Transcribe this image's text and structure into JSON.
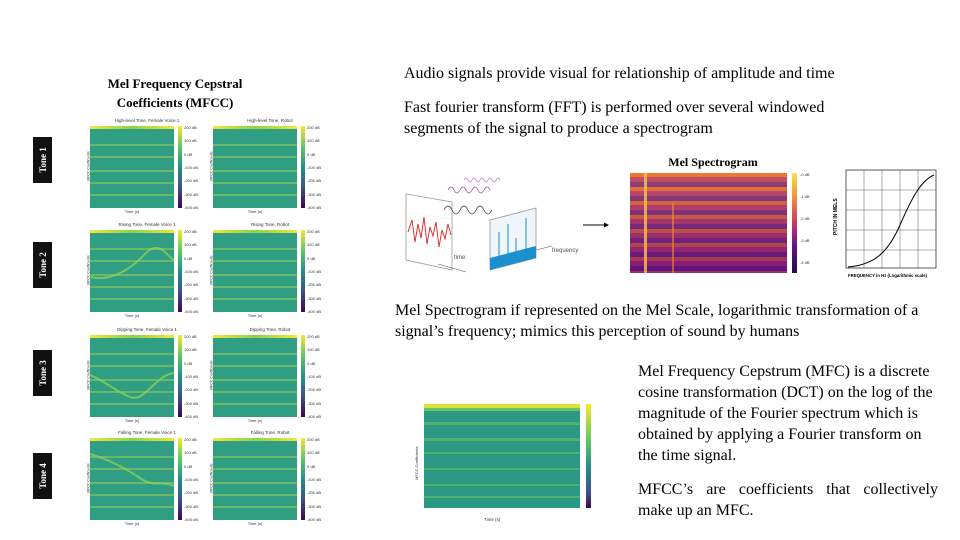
{
  "left": {
    "title_line1": "Mel Frequency Cepstral",
    "title_line2": "Coefficients (MFCC)",
    "tones": [
      "Tone 1",
      "Tone 2",
      "Tone 3",
      "Tone 4"
    ],
    "panels": [
      {
        "title": "High-level Tone, Female Voice 1",
        "xlabel": "Time (s)",
        "ylabel": "MFCC Coefficients"
      },
      {
        "title": "High-level Tone, Robot",
        "xlabel": "Time (s)",
        "ylabel": "MFCC Coefficients"
      },
      {
        "title": "Rising Tone, Female Voice 1",
        "xlabel": "Time (s)",
        "ylabel": "MFCC Coefficients"
      },
      {
        "title": "Rising Tone, Robot",
        "xlabel": "Time (s)",
        "ylabel": "MFCC Coefficients"
      },
      {
        "title": "Dipping Tone, Female Voice 1",
        "xlabel": "Time (s)",
        "ylabel": "MFCC Coefficients"
      },
      {
        "title": "Dipping Tone, Robot",
        "xlabel": "Time (s)",
        "ylabel": "MFCC Coefficients"
      },
      {
        "title": "Falling Tone, Female Voice 1",
        "xlabel": "Time (s)",
        "ylabel": "MFCC Coefficients"
      },
      {
        "title": "Falling Tone, Robot",
        "xlabel": "Time (s)",
        "ylabel": "MFCC Coefficients"
      }
    ],
    "colorbar_ticks": [
      "200 dB",
      "100 dB",
      "0 dB",
      "-100 dB",
      "-200 dB",
      "-300 dB",
      "-400 dB"
    ]
  },
  "right": {
    "text1": "Audio signals provide visual for relationship of amplitude and time",
    "text2": "Fast fourier transform (FFT) is performed over several windowed segments of the signal to produce a spectrogram",
    "mel_title": "Mel Spectrogram",
    "fft_time_label": "time",
    "fft_freq_label": "frequency",
    "mel_cbar_ticks": [
      "-0 dB",
      "-1 dB",
      "-2 dB",
      "-3 dB",
      "-4 dB"
    ],
    "melscale_ylabel": "PITCH IN MELS",
    "melscale_xlabel": "FREQUENCY in Hz (Logarithmic scale)",
    "text3": "Mel Spectrogram if represented on the Mel Scale, logarithmic transformation of a signal’s frequency; mimics this perception of sound by humans",
    "text4": "Mel Frequency Cepstrum (MFC) is a discrete cosine transformation (DCT) on the log of the magnitude of the Fourier spectrum which is obtained by applying a Fourier transform on the time signal.",
    "text5": "MFCC’s are coefficients that collectively make up an MFC.",
    "mfcc_xlabel": "Time (s)",
    "mfcc_ylabel": "MFCC Coefficients"
  }
}
